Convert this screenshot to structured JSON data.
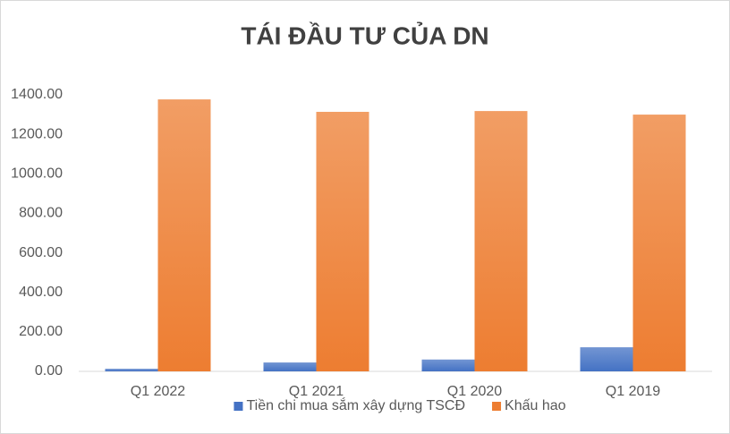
{
  "chart_data": {
    "type": "bar",
    "title": "TÁI ĐẦU TƯ CỦA DN",
    "categories": [
      "Q1 2022",
      "Q1 2021",
      "Q1 2020",
      "Q1 2019"
    ],
    "series": [
      {
        "name": "Tiền chi mua sắm xây dựng TSCĐ",
        "color": "#4472c4",
        "values": [
          13,
          45,
          60,
          122
        ]
      },
      {
        "name": "Khấu hao",
        "color": "#ed7d31",
        "values": [
          1377,
          1314,
          1318,
          1300
        ]
      }
    ],
    "ylim": [
      0,
      1400
    ],
    "yticks": [
      {
        "value": 0,
        "label": "0.00"
      },
      {
        "value": 200,
        "label": "200.00"
      },
      {
        "value": 400,
        "label": "400.00"
      },
      {
        "value": 600,
        "label": "600.00"
      },
      {
        "value": 800,
        "label": "800.00"
      },
      {
        "value": 1000,
        "label": "1000.00"
      },
      {
        "value": 1200,
        "label": "1200.00"
      },
      {
        "value": 1400,
        "label": "1400.00"
      }
    ],
    "grid": false,
    "legend": "bottom"
  }
}
